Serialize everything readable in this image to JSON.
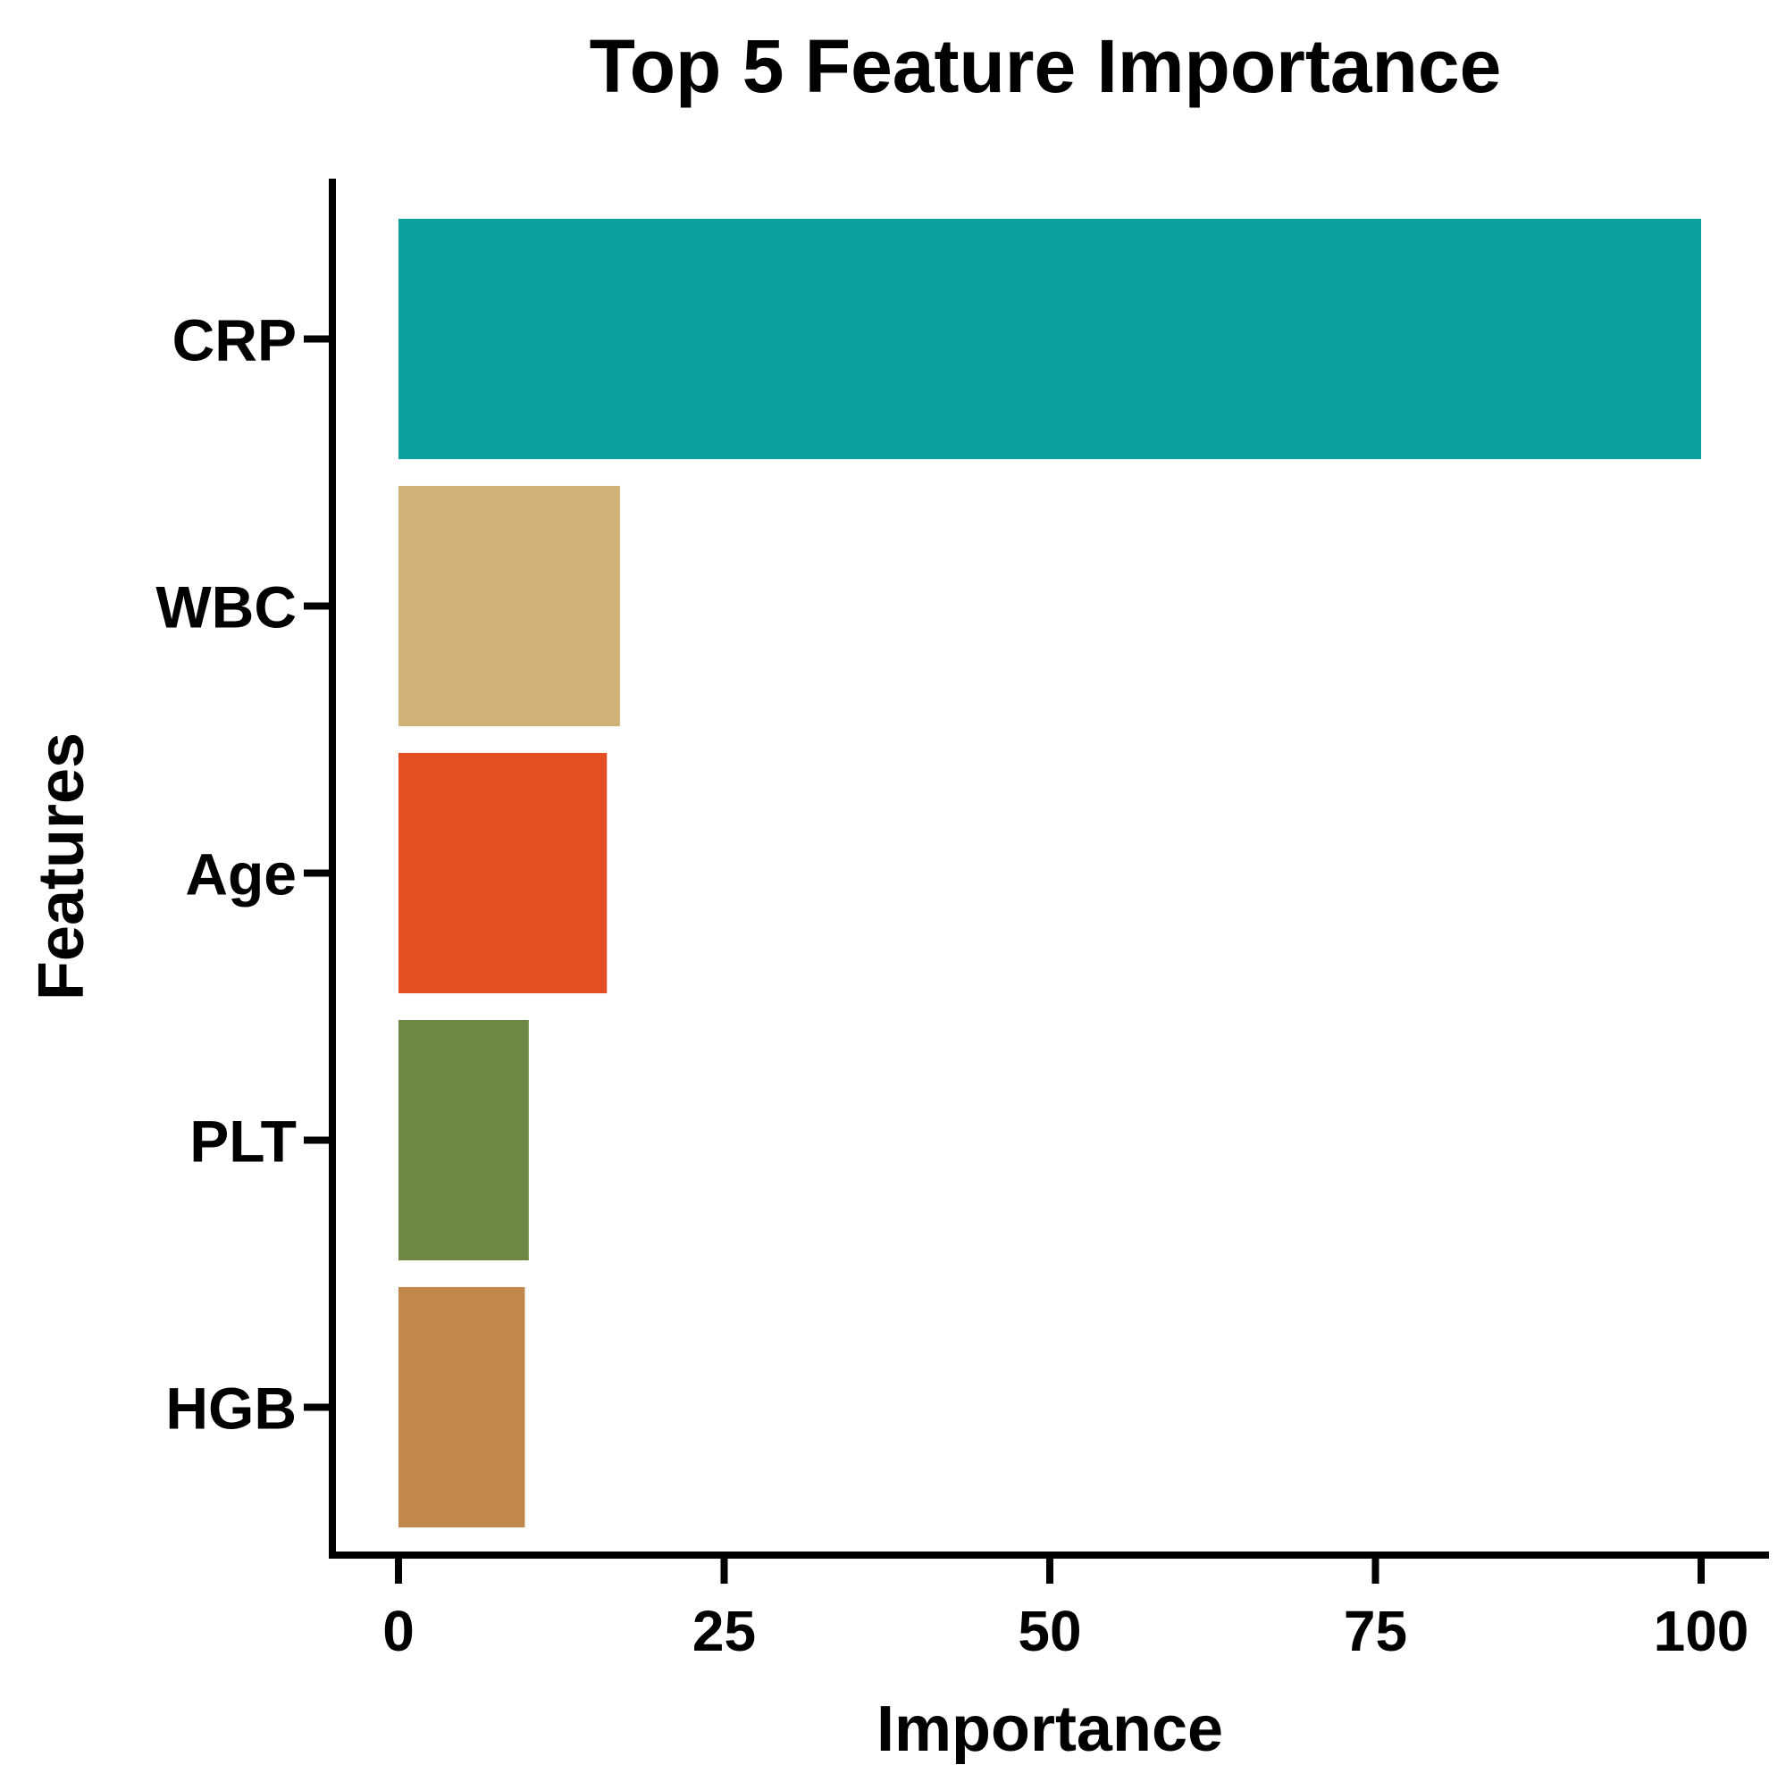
{
  "chart_data": {
    "type": "bar",
    "orientation": "horizontal",
    "title": "Top 5 Feature Importance",
    "xlabel": "Importance",
    "ylabel": "Features",
    "categories": [
      "CRP",
      "WBC",
      "Age",
      "PLT",
      "HGB"
    ],
    "values": [
      100,
      17,
      16,
      10,
      9.7
    ],
    "colors": [
      "#0CA09C",
      "#CFB277",
      "#E44E23",
      "#6E8745",
      "#C1884B"
    ],
    "xlim": [
      -5,
      105
    ],
    "xticks": [
      0,
      25,
      50,
      75,
      100
    ],
    "grid": false,
    "legend": "none"
  }
}
